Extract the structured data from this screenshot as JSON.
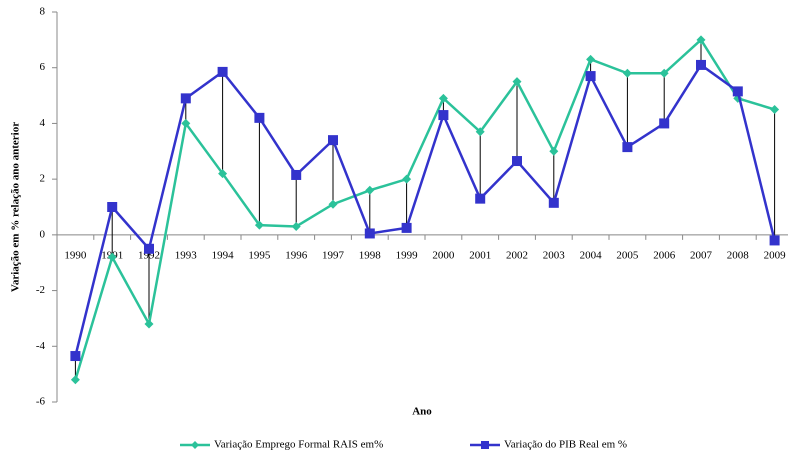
{
  "chart_data": {
    "type": "line",
    "y_label": "Variação em % relação ano anterior",
    "x_label": "Ano",
    "categories": [
      "1990",
      "1991",
      "1992",
      "1993",
      "1994",
      "1995",
      "1996",
      "1997",
      "1998",
      "1999",
      "2000",
      "2001",
      "2002",
      "2003",
      "2004",
      "2005",
      "2006",
      "2007",
      "2008",
      "2009"
    ],
    "series": [
      {
        "name": "Variação Emprego Formal RAIS em%",
        "color": "#2bc29a",
        "marker": "diamond",
        "values": [
          -5.2,
          -0.8,
          -3.2,
          4.0,
          2.2,
          0.35,
          0.3,
          1.1,
          1.6,
          2.0,
          4.9,
          3.7,
          5.5,
          3.0,
          6.3,
          5.8,
          5.8,
          7.0,
          4.9,
          4.5
        ]
      },
      {
        "name": "Variação do PIB Real em %",
        "color": "#3333cc",
        "marker": "square",
        "values": [
          -4.35,
          1.0,
          -0.5,
          4.9,
          5.85,
          4.2,
          2.15,
          3.4,
          0.05,
          0.25,
          4.3,
          1.3,
          2.65,
          1.15,
          5.7,
          3.15,
          4.0,
          6.1,
          5.15,
          -0.2
        ]
      }
    ],
    "drop_lines": true,
    "ylim": [
      -6,
      8
    ],
    "yticks": [
      -6,
      -4,
      -2,
      0,
      2,
      4,
      6,
      8
    ],
    "legend": "bottom"
  }
}
